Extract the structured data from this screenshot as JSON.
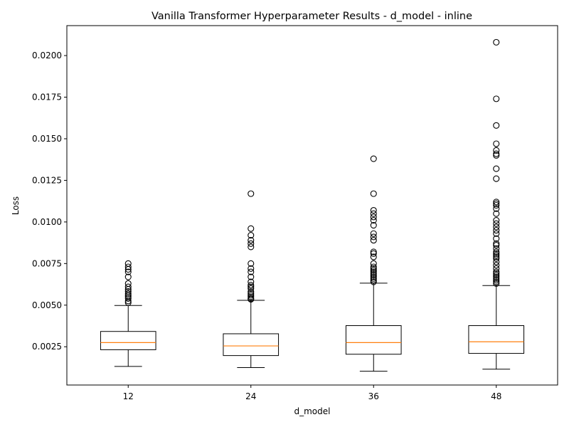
{
  "chart_data": {
    "type": "box",
    "title": "Vanilla Transformer Hyperparameter Results - d_model - inline",
    "xlabel": "d_model",
    "ylabel": "Loss",
    "categories": [
      "12",
      "24",
      "36",
      "48"
    ],
    "ylim": [
      0.0002,
      0.0218
    ],
    "yticks": [
      0.0025,
      0.005,
      0.0075,
      0.01,
      0.0125,
      0.015,
      0.0175,
      0.02
    ],
    "ytick_labels": [
      "0.0025",
      "0.0050",
      "0.0075",
      "0.0100",
      "0.0125",
      "0.0150",
      "0.0175",
      "0.0200"
    ],
    "grid": false,
    "colors": {
      "box": "#000000",
      "median": "#ff7f0e",
      "flier": "#000000"
    },
    "boxes": [
      {
        "category": "12",
        "whisker_low": 0.00132,
        "q1": 0.00232,
        "median": 0.00275,
        "q3": 0.00342,
        "whisker_high": 0.00498,
        "outliers": [
          0.00515,
          0.00525,
          0.0054,
          0.0055,
          0.0056,
          0.0057,
          0.00582,
          0.00595,
          0.0061,
          0.0063,
          0.0067,
          0.007,
          0.00715,
          0.0073,
          0.0075
        ]
      },
      {
        "category": "24",
        "whisker_low": 0.00125,
        "q1": 0.00197,
        "median": 0.00255,
        "q3": 0.00328,
        "whisker_high": 0.00529,
        "outliers": [
          0.00535,
          0.0054,
          0.0055,
          0.0056,
          0.0057,
          0.0058,
          0.006,
          0.0061,
          0.0062,
          0.0064,
          0.0067,
          0.007,
          0.0072,
          0.0075,
          0.0085,
          0.0087,
          0.0089,
          0.0092,
          0.0096,
          0.0117
        ]
      },
      {
        "category": "36",
        "whisker_low": 0.00103,
        "q1": 0.00205,
        "median": 0.00275,
        "q3": 0.00377,
        "whisker_high": 0.00632,
        "outliers": [
          0.0064,
          0.0065,
          0.0066,
          0.0067,
          0.0068,
          0.0069,
          0.007,
          0.0071,
          0.0072,
          0.0073,
          0.0075,
          0.0079,
          0.0081,
          0.0082,
          0.0089,
          0.0091,
          0.0093,
          0.0098,
          0.0101,
          0.0103,
          0.0105,
          0.0107,
          0.0117,
          0.0138
        ]
      },
      {
        "category": "48",
        "whisker_low": 0.00115,
        "q1": 0.0021,
        "median": 0.0028,
        "q3": 0.00377,
        "whisker_high": 0.00618,
        "outliers": [
          0.0063,
          0.0064,
          0.0065,
          0.0066,
          0.0067,
          0.0068,
          0.0069,
          0.007,
          0.0072,
          0.0074,
          0.0076,
          0.0078,
          0.0079,
          0.008,
          0.0081,
          0.0082,
          0.0084,
          0.0086,
          0.0087,
          0.009,
          0.0093,
          0.0095,
          0.0097,
          0.0099,
          0.0101,
          0.0105,
          0.0108,
          0.011,
          0.0111,
          0.0112,
          0.0126,
          0.0132,
          0.014,
          0.0141,
          0.0143,
          0.0147,
          0.0158,
          0.0174,
          0.0208
        ]
      }
    ]
  }
}
